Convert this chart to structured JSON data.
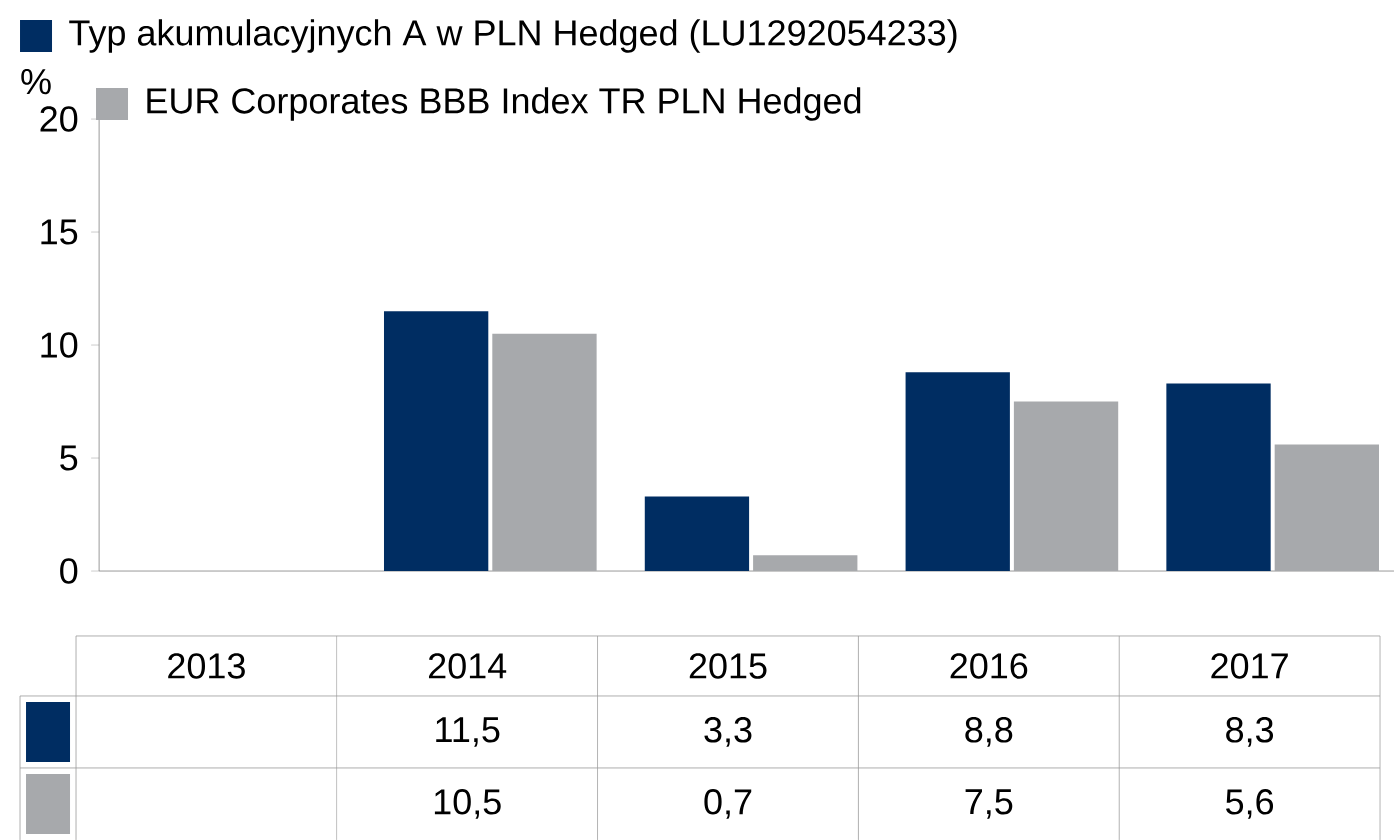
{
  "chart_data": {
    "type": "bar",
    "ylabel": "%",
    "categories": [
      "2013",
      "2014",
      "2015",
      "2016",
      "2017"
    ],
    "series": [
      {
        "name": "Typ akumulacyjnych A w PLN Hedged (LU1292054233)",
        "color": "#002d62",
        "values": [
          null,
          11.5,
          3.3,
          8.8,
          8.3
        ],
        "value_labels": [
          null,
          "11,5",
          "3,3",
          "8,8",
          "8,3"
        ]
      },
      {
        "name": "EUR Corporates BBB Index TR PLN Hedged",
        "color": "#a7a9ac",
        "values": [
          null,
          10.5,
          0.7,
          7.5,
          5.6
        ],
        "value_labels": [
          null,
          "10,5",
          "0,7",
          "7,5",
          "5,6"
        ]
      }
    ],
    "ylim": [
      0,
      20
    ],
    "yticks": [
      0,
      5,
      10,
      15,
      20
    ],
    "grid": false,
    "legend": "top left"
  }
}
